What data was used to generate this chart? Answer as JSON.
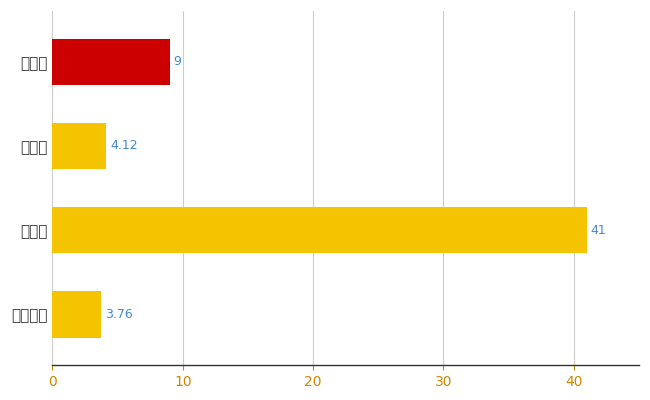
{
  "categories": [
    "見沼区",
    "県平均",
    "県最大",
    "全国平均"
  ],
  "values": [
    9,
    4.12,
    41,
    3.76
  ],
  "bar_colors": [
    "#cc0000",
    "#f5c400",
    "#f5c400",
    "#f5c400"
  ],
  "value_labels": [
    "9",
    "4.12",
    "41",
    "3.76"
  ],
  "xlim": [
    0,
    45
  ],
  "xticks": [
    0,
    10,
    20,
    30,
    40
  ],
  "background_color": "#ffffff",
  "grid_color": "#cccccc",
  "label_color": "#4488cc",
  "bar_height": 0.55,
  "figsize": [
    6.5,
    4.0
  ],
  "dpi": 100
}
